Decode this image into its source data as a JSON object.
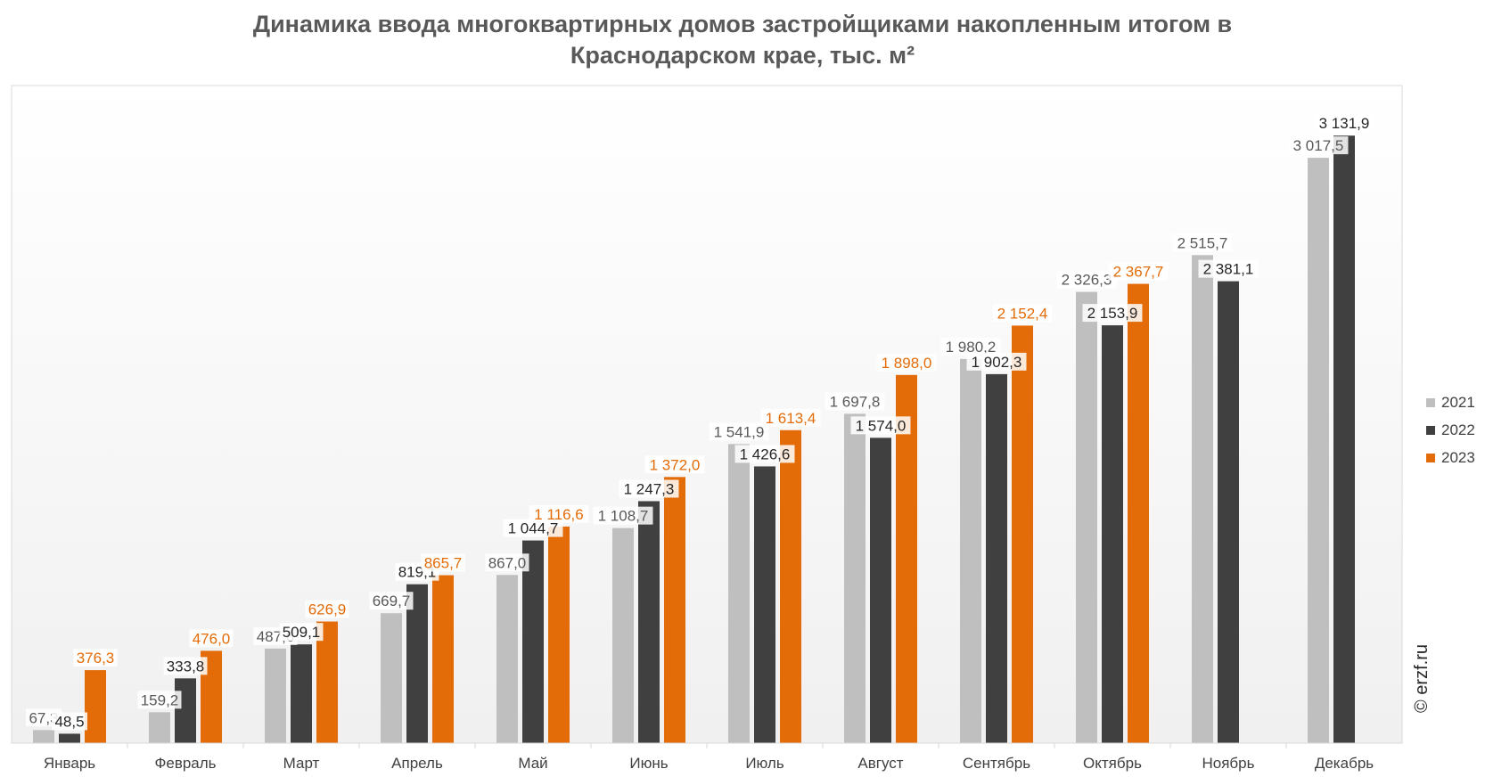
{
  "chart_data": {
    "type": "bar",
    "title_lines": [
      "Динамика ввода многоквартирных домов застройщиками накопленным итогом в",
      "Краснодарском крае, тыс. м²"
    ],
    "categories": [
      "Январь",
      "Февраль",
      "Март",
      "Апрель",
      "Май",
      "Июнь",
      "Июль",
      "Август",
      "Сентябрь",
      "Октябрь",
      "Ноябрь",
      "Декабрь"
    ],
    "series": [
      {
        "name": "2021",
        "color": "#bfbfbf",
        "label_color": "#595959",
        "values": [
          67.3,
          159.2,
          487.6,
          669.7,
          867.0,
          1108.7,
          1541.9,
          1697.8,
          1980.2,
          2326.3,
          2515.7,
          3017.5
        ],
        "labels": [
          "67,3",
          "159,2",
          "487,6",
          "669,7",
          "867,0",
          "1 108,7",
          "1 541,9",
          "1 697,8",
          "1 980,2",
          "2 326,3",
          "2 515,7",
          "3 017,5"
        ]
      },
      {
        "name": "2022",
        "color": "#404040",
        "label_color": "#262626",
        "values": [
          48.5,
          333.8,
          509.1,
          819.1,
          1044.7,
          1247.3,
          1426.6,
          1574.0,
          1902.3,
          2153.9,
          2381.1,
          3131.9
        ],
        "labels": [
          "48,5",
          "333,8",
          "509,1",
          "819,1",
          "1 044,7",
          "1 247,3",
          "1 426,6",
          "1 574,0",
          "1 902,3",
          "2 153,9",
          "2 381,1",
          "3 131,9"
        ]
      },
      {
        "name": "2023",
        "color": "#e36c09",
        "label_color": "#e36c09",
        "values": [
          376.3,
          476.0,
          626.9,
          865.7,
          1116.6,
          1372.0,
          1613.4,
          1898.0,
          2152.4,
          2367.7,
          null,
          null
        ],
        "labels": [
          "376,3",
          "476,0",
          "626,9",
          "865,7",
          "1 116,6",
          "1 372,0",
          "1 613,4",
          "1 898,0",
          "2 152,4",
          "2 367,7",
          "",
          ""
        ]
      }
    ],
    "ylim": [
      0,
      3500
    ],
    "legend_position": "right",
    "grid": false,
    "watermark": "© erzf.ru"
  }
}
